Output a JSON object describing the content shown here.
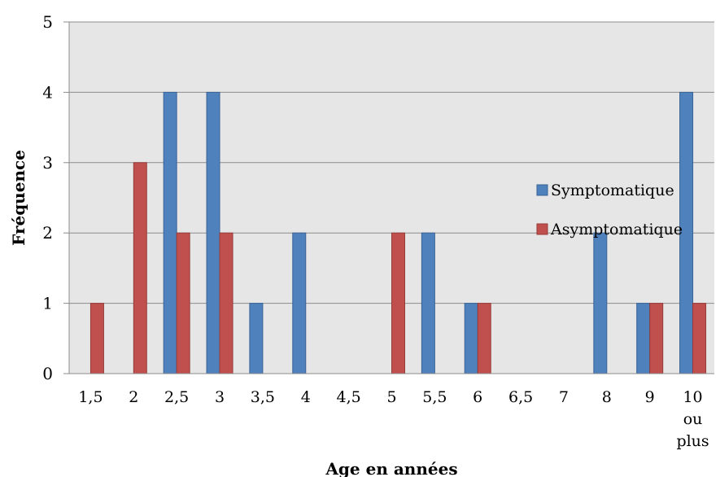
{
  "chart_data": {
    "type": "bar",
    "categories": [
      "1,5",
      "2",
      "2,5",
      "3",
      "3,5",
      "4",
      "4,5",
      "5",
      "5,5",
      "6",
      "6,5",
      "7",
      "8",
      "9",
      "10\nou\nplus"
    ],
    "series": [
      {
        "name": "Symptomatique",
        "color": "#4F81BD",
        "values": [
          0,
          0,
          4,
          4,
          1,
          2,
          0,
          0,
          2,
          1,
          0,
          0,
          2,
          1,
          4
        ]
      },
      {
        "name": "Asymptomatique",
        "color": "#C0504D",
        "values": [
          1,
          3,
          2,
          2,
          0,
          0,
          0,
          2,
          0,
          1,
          0,
          0,
          0,
          1,
          1
        ]
      }
    ],
    "xlabel": "Age en années",
    "ylabel": "Fréquence",
    "ylim": [
      0,
      5
    ],
    "yticks": [
      0,
      1,
      2,
      3,
      4,
      5
    ],
    "grid": true,
    "legend_position": "right",
    "plot_background": "#E6E6E6"
  }
}
